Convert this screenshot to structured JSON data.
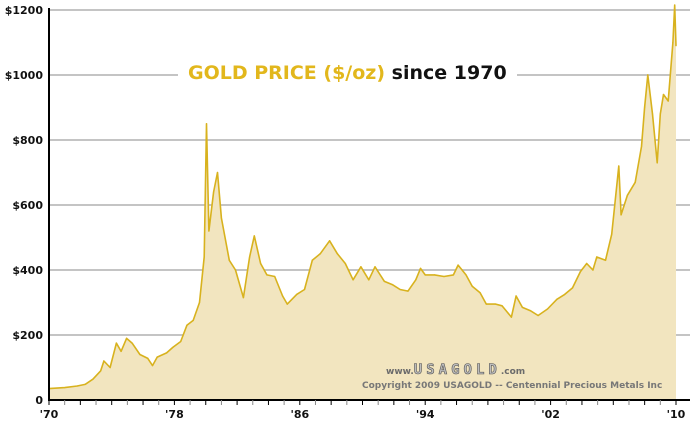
{
  "chart_data": {
    "type": "area",
    "title_part1": "GOLD PRICE ($/oz)",
    "title_part2": "since  1970",
    "xlabel": "",
    "ylabel": "",
    "xlim": [
      1970,
      2010
    ],
    "ylim": [
      0,
      1200
    ],
    "grid": true,
    "y_ticks": [
      0,
      200,
      400,
      600,
      800,
      1000,
      1200
    ],
    "y_tick_labels": [
      "0",
      "$200",
      "$400",
      "$600",
      "$800",
      "$1000",
      "$1200"
    ],
    "x_ticks": [
      1970,
      1978,
      1986,
      1994,
      2002,
      2010
    ],
    "x_tick_labels": [
      "'70",
      "'78",
      "'86",
      "'94",
      "'02",
      "'10"
    ],
    "series": [
      {
        "color": "#d8b21e",
        "fill": "#f2e5bf",
        "points": [
          [
            1970.0,
            35
          ],
          [
            1971.0,
            38
          ],
          [
            1971.8,
            43
          ],
          [
            1972.3,
            48
          ],
          [
            1972.8,
            64
          ],
          [
            1973.3,
            90
          ],
          [
            1973.5,
            120
          ],
          [
            1973.9,
            100
          ],
          [
            1974.3,
            175
          ],
          [
            1974.6,
            150
          ],
          [
            1974.95,
            190
          ],
          [
            1975.3,
            175
          ],
          [
            1975.8,
            140
          ],
          [
            1976.3,
            128
          ],
          [
            1976.6,
            106
          ],
          [
            1976.9,
            132
          ],
          [
            1977.5,
            145
          ],
          [
            1977.9,
            162
          ],
          [
            1978.4,
            180
          ],
          [
            1978.8,
            230
          ],
          [
            1979.2,
            245
          ],
          [
            1979.6,
            300
          ],
          [
            1979.9,
            440
          ],
          [
            1980.05,
            850
          ],
          [
            1980.2,
            520
          ],
          [
            1980.5,
            640
          ],
          [
            1980.75,
            700
          ],
          [
            1981.0,
            560
          ],
          [
            1981.5,
            430
          ],
          [
            1981.9,
            400
          ],
          [
            1982.4,
            315
          ],
          [
            1982.8,
            440
          ],
          [
            1983.1,
            505
          ],
          [
            1983.5,
            420
          ],
          [
            1983.9,
            385
          ],
          [
            1984.4,
            380
          ],
          [
            1984.9,
            320
          ],
          [
            1985.2,
            295
          ],
          [
            1985.8,
            325
          ],
          [
            1986.3,
            340
          ],
          [
            1986.8,
            430
          ],
          [
            1987.3,
            450
          ],
          [
            1987.9,
            490
          ],
          [
            1988.4,
            450
          ],
          [
            1988.9,
            420
          ],
          [
            1989.4,
            370
          ],
          [
            1989.9,
            410
          ],
          [
            1990.4,
            370
          ],
          [
            1990.8,
            410
          ],
          [
            1991.4,
            365
          ],
          [
            1991.9,
            355
          ],
          [
            1992.4,
            340
          ],
          [
            1992.9,
            335
          ],
          [
            1993.4,
            370
          ],
          [
            1993.7,
            405
          ],
          [
            1994.0,
            385
          ],
          [
            1994.6,
            385
          ],
          [
            1995.2,
            380
          ],
          [
            1995.8,
            385
          ],
          [
            1996.1,
            415
          ],
          [
            1996.6,
            385
          ],
          [
            1997.0,
            350
          ],
          [
            1997.5,
            330
          ],
          [
            1997.9,
            295
          ],
          [
            1998.5,
            295
          ],
          [
            1998.9,
            290
          ],
          [
            1999.5,
            255
          ],
          [
            1999.8,
            320
          ],
          [
            2000.2,
            285
          ],
          [
            2000.7,
            275
          ],
          [
            2001.2,
            260
          ],
          [
            2001.8,
            280
          ],
          [
            2002.4,
            310
          ],
          [
            2002.9,
            325
          ],
          [
            2003.4,
            345
          ],
          [
            2003.9,
            395
          ],
          [
            2004.3,
            420
          ],
          [
            2004.7,
            400
          ],
          [
            2004.95,
            440
          ],
          [
            2005.5,
            430
          ],
          [
            2005.9,
            510
          ],
          [
            2006.35,
            720
          ],
          [
            2006.5,
            570
          ],
          [
            2006.9,
            630
          ],
          [
            2007.4,
            670
          ],
          [
            2007.8,
            780
          ],
          [
            2008.0,
            900
          ],
          [
            2008.2,
            1000
          ],
          [
            2008.5,
            880
          ],
          [
            2008.8,
            730
          ],
          [
            2009.0,
            880
          ],
          [
            2009.2,
            940
          ],
          [
            2009.5,
            920
          ],
          [
            2009.8,
            1100
          ],
          [
            2009.92,
            1215
          ],
          [
            2010.0,
            1090
          ]
        ]
      }
    ],
    "watermark_url_prefix": "www.",
    "watermark_logo": "USAGOLD",
    "watermark_url_suffix": ".com",
    "copyright": "Copyright 2009 USAGOLD  -- Centennial Precious Metals Inc"
  }
}
